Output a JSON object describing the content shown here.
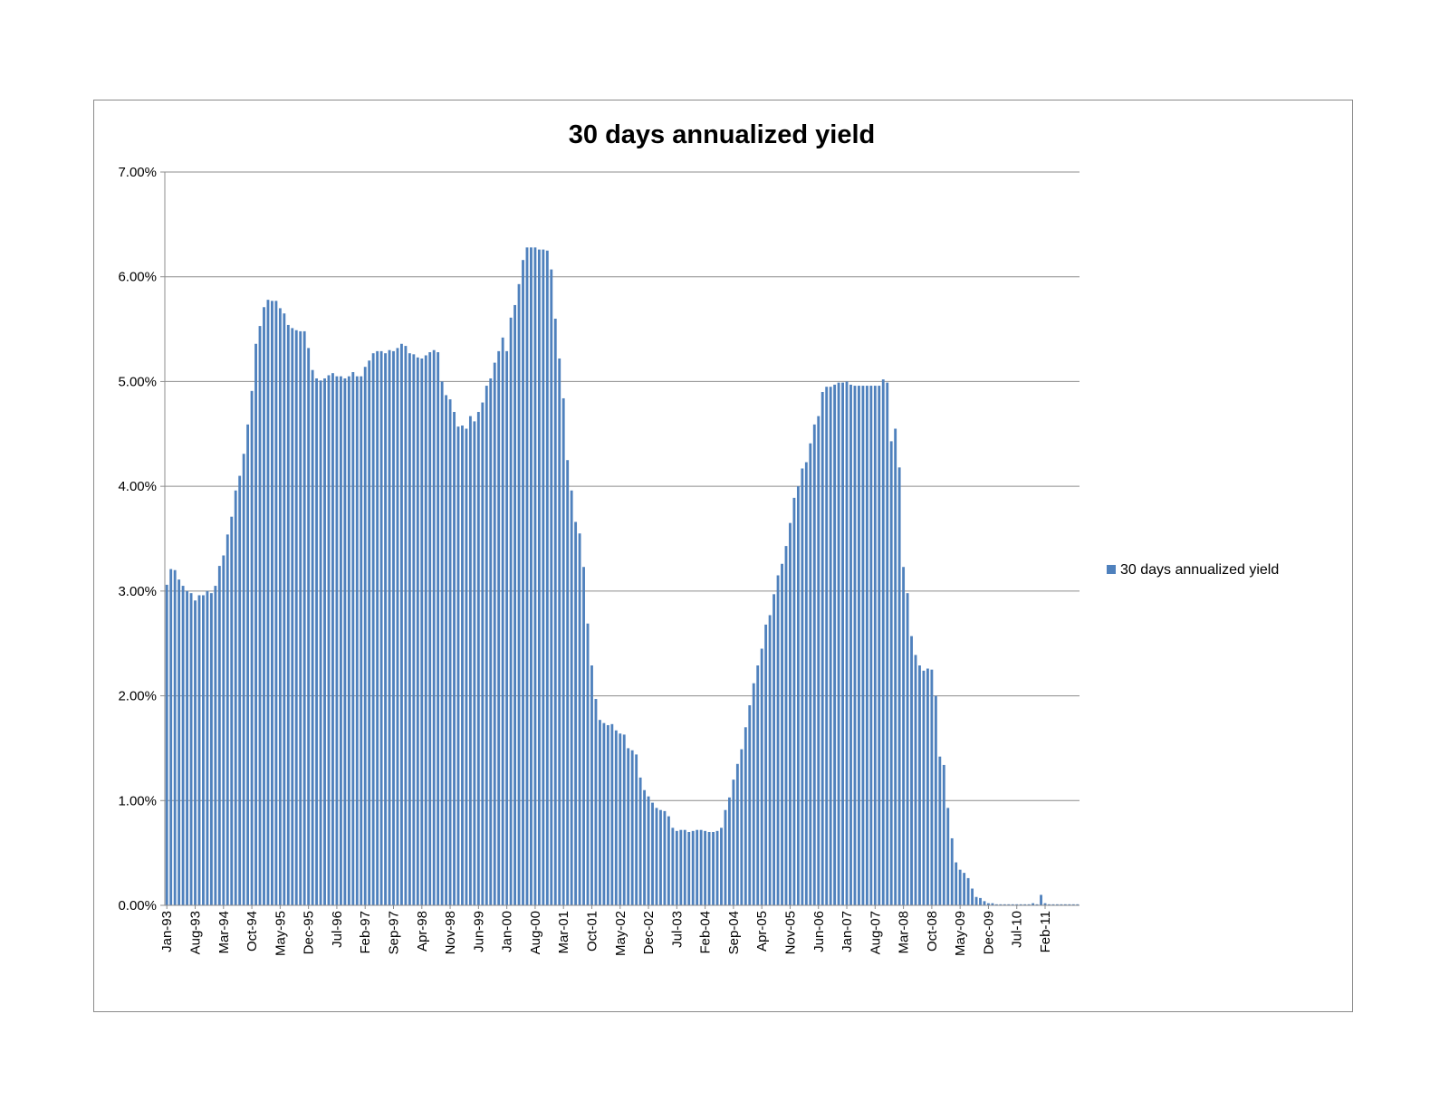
{
  "chart_data": {
    "type": "bar",
    "title": "30 days annualized yield",
    "xlabel": "",
    "ylabel": "",
    "ylim": [
      0,
      0.07
    ],
    "y_ticks": [
      "0.00%",
      "1.00%",
      "2.00%",
      "3.00%",
      "4.00%",
      "5.00%",
      "6.00%",
      "7.00%"
    ],
    "y_tick_values": [
      0,
      0.01,
      0.02,
      0.03,
      0.04,
      0.05,
      0.06,
      0.07
    ],
    "grid": "horizontal",
    "legend": "right",
    "x_tick_labels": [
      "Jan-93",
      "Aug-93",
      "Mar-94",
      "Oct-94",
      "May-95",
      "Dec-95",
      "Jul-96",
      "Feb-97",
      "Sep-97",
      "Apr-98",
      "Nov-98",
      "Jun-99",
      "Jan-00",
      "Aug-00",
      "Mar-01",
      "Oct-01",
      "May-02",
      "Dec-02",
      "Jul-03",
      "Feb-04",
      "Sep-04",
      "Apr-05",
      "Nov-05",
      "Jun-06",
      "Jan-07",
      "Aug-07",
      "Mar-08",
      "Oct-08",
      "May-09",
      "Dec-09",
      "Jul-10",
      "Feb-11"
    ],
    "x_start": "Jan-93",
    "x_end": "Jun-11",
    "bar_color": "#4f81bd",
    "series": [
      {
        "name": "30 days annualized yield",
        "values": [
          0.0306,
          0.0321,
          0.032,
          0.0311,
          0.0305,
          0.03,
          0.0298,
          0.0291,
          0.0296,
          0.0296,
          0.03,
          0.0298,
          0.0305,
          0.0324,
          0.0334,
          0.0354,
          0.0371,
          0.0396,
          0.041,
          0.0431,
          0.0459,
          0.0491,
          0.0536,
          0.0553,
          0.0571,
          0.0578,
          0.0577,
          0.0577,
          0.057,
          0.0565,
          0.0554,
          0.0551,
          0.0549,
          0.0548,
          0.0548,
          0.0532,
          0.0511,
          0.0503,
          0.0501,
          0.0503,
          0.0506,
          0.0508,
          0.0505,
          0.0505,
          0.0503,
          0.0505,
          0.0509,
          0.0505,
          0.0505,
          0.0514,
          0.052,
          0.0527,
          0.0529,
          0.0529,
          0.0527,
          0.053,
          0.0529,
          0.0532,
          0.0536,
          0.0534,
          0.0527,
          0.0526,
          0.0523,
          0.0522,
          0.0525,
          0.0528,
          0.053,
          0.0528,
          0.05,
          0.0487,
          0.0483,
          0.0471,
          0.0457,
          0.0458,
          0.0455,
          0.0467,
          0.0462,
          0.0471,
          0.048,
          0.0496,
          0.0503,
          0.0518,
          0.0529,
          0.0542,
          0.0529,
          0.0561,
          0.0573,
          0.0593,
          0.0616,
          0.0628,
          0.0628,
          0.0628,
          0.0626,
          0.0626,
          0.0625,
          0.0607,
          0.056,
          0.0522,
          0.0484,
          0.0425,
          0.0396,
          0.0366,
          0.0355,
          0.0323,
          0.0269,
          0.0229,
          0.0197,
          0.0177,
          0.0174,
          0.0172,
          0.0173,
          0.0167,
          0.0164,
          0.0163,
          0.015,
          0.0148,
          0.0144,
          0.0122,
          0.011,
          0.0104,
          0.0098,
          0.0093,
          0.0091,
          0.009,
          0.0085,
          0.0074,
          0.0071,
          0.0072,
          0.0072,
          0.007,
          0.0071,
          0.0072,
          0.0072,
          0.0071,
          0.007,
          0.007,
          0.0071,
          0.0074,
          0.0091,
          0.0103,
          0.012,
          0.0135,
          0.0149,
          0.017,
          0.0191,
          0.0212,
          0.0229,
          0.0245,
          0.0268,
          0.0277,
          0.0297,
          0.0315,
          0.0326,
          0.0343,
          0.0365,
          0.0389,
          0.04,
          0.0417,
          0.0423,
          0.0441,
          0.0459,
          0.0467,
          0.049,
          0.0495,
          0.0495,
          0.0497,
          0.0499,
          0.0499,
          0.05,
          0.0497,
          0.0496,
          0.0496,
          0.0496,
          0.0496,
          0.0496,
          0.0496,
          0.0496,
          0.0502,
          0.0499,
          0.0443,
          0.0455,
          0.0418,
          0.0323,
          0.0298,
          0.0257,
          0.0239,
          0.0229,
          0.0224,
          0.0226,
          0.0225,
          0.02,
          0.0142,
          0.0134,
          0.0093,
          0.0064,
          0.0041,
          0.0034,
          0.0031,
          0.0026,
          0.0016,
          0.0008,
          0.0007,
          0.0004,
          0.0002,
          0.0002,
          0.0001,
          0.0001,
          0.0001,
          0.0001,
          0.0001,
          0.0001,
          0.0001,
          0.0001,
          0.0001,
          0.0002,
          0.0001,
          0.001,
          0.0002,
          0.0001,
          0.0001,
          0.0001,
          0.0001,
          0.0001,
          0.0001,
          0.0001,
          0.0001
        ]
      }
    ]
  }
}
